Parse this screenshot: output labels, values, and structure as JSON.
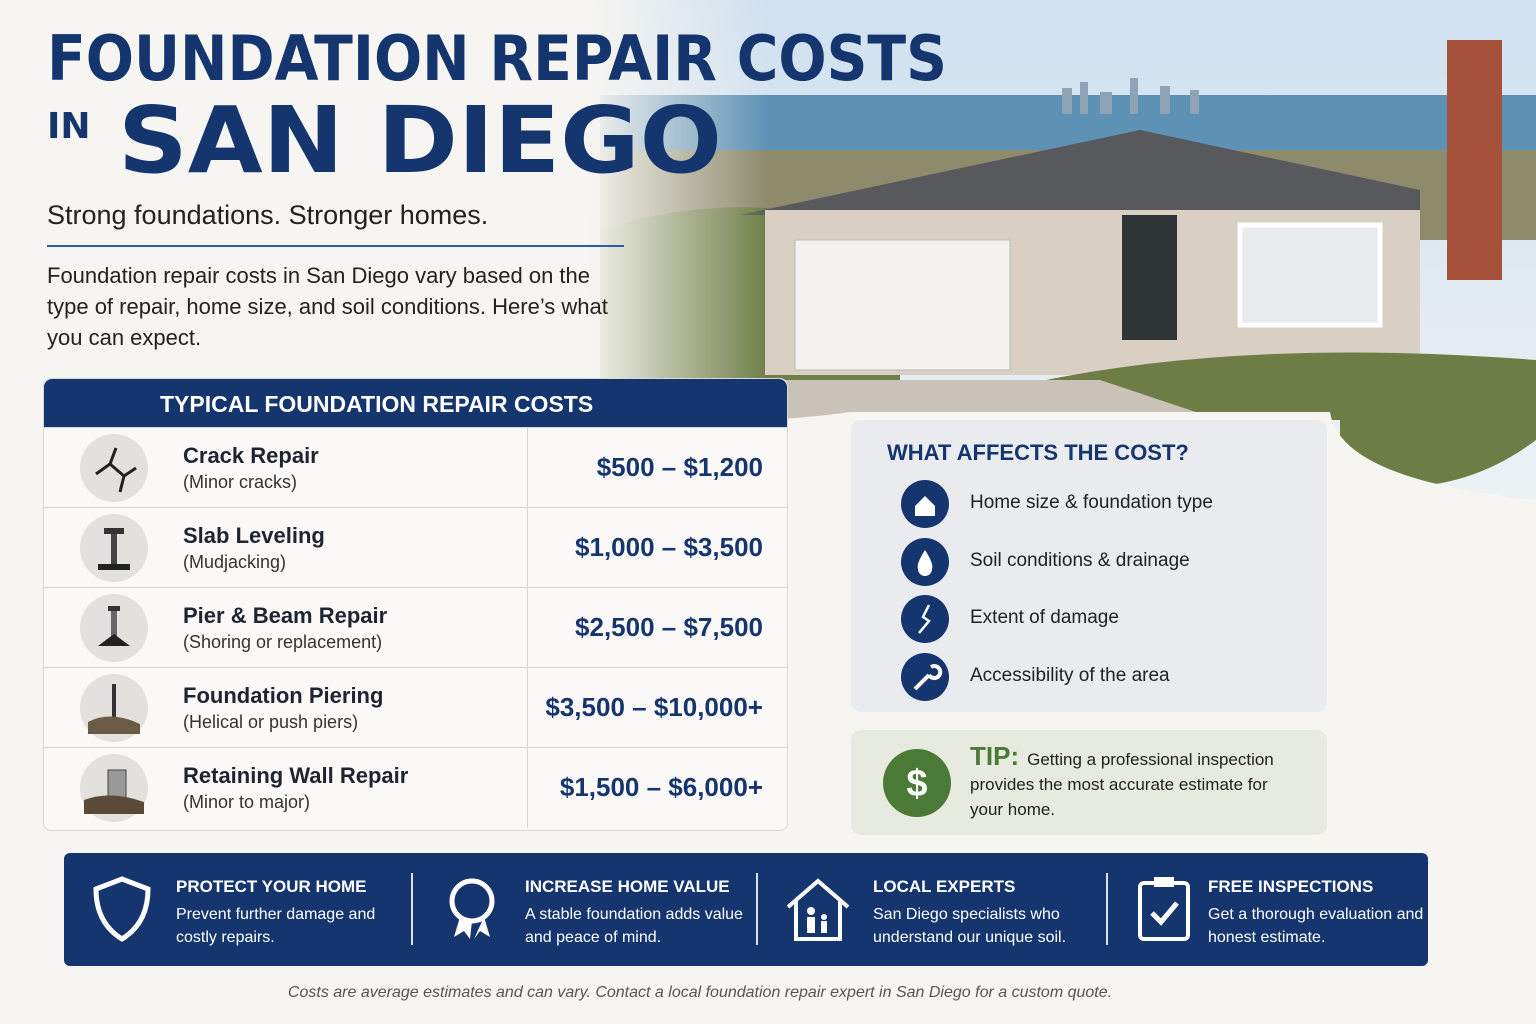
{
  "header": {
    "title_line1": "FOUNDATION REPAIR COSTS",
    "title_in": "IN",
    "title_line2": "SAN DIEGO",
    "tagline": "Strong foundations. Stronger homes.",
    "intro": "Foundation repair costs in San Diego vary based on the type of repair, home size, and soil conditions. Here’s what you can expect."
  },
  "cost_table": {
    "title": "TYPICAL FOUNDATION REPAIR COSTS",
    "rows": [
      {
        "name": "Crack Repair",
        "detail": "(Minor cracks)",
        "price": "$500 – $1,200"
      },
      {
        "name": "Slab Leveling",
        "detail": "(Mudjacking)",
        "price": "$1,000 – $3,500"
      },
      {
        "name": "Pier & Beam Repair",
        "detail": "(Shoring or replacement)",
        "price": "$2,500 – $7,500"
      },
      {
        "name": "Foundation Piering",
        "detail": "(Helical or push piers)",
        "price": "$3,500 – $10,000+"
      },
      {
        "name": "Retaining Wall Repair",
        "detail": "(Minor to major)",
        "price": "$1,500 – $6,000+"
      }
    ]
  },
  "factors": {
    "title": "WHAT AFFECTS THE COST?",
    "items": [
      "Home size & foundation type",
      "Soil conditions & drainage",
      "Extent of damage",
      "Accessibility of the area"
    ]
  },
  "tip": {
    "label": "TIP:",
    "text": "Getting a professional inspection provides the most accurate estimate for your home."
  },
  "benefits": [
    {
      "title": "PROTECT YOUR HOME",
      "text": "Prevent further damage and costly repairs."
    },
    {
      "title": "INCREASE HOME VALUE",
      "text": "A stable foundation adds value and peace of mind."
    },
    {
      "title": "LOCAL EXPERTS",
      "text": "San Diego specialists who understand our unique soil."
    },
    {
      "title": "FREE INSPECTIONS",
      "text": "Get a thorough evaluation and honest estimate."
    }
  ],
  "footnote": "Costs are average estimates and can vary. Contact a local foundation repair expert in San Diego for a custom quote."
}
